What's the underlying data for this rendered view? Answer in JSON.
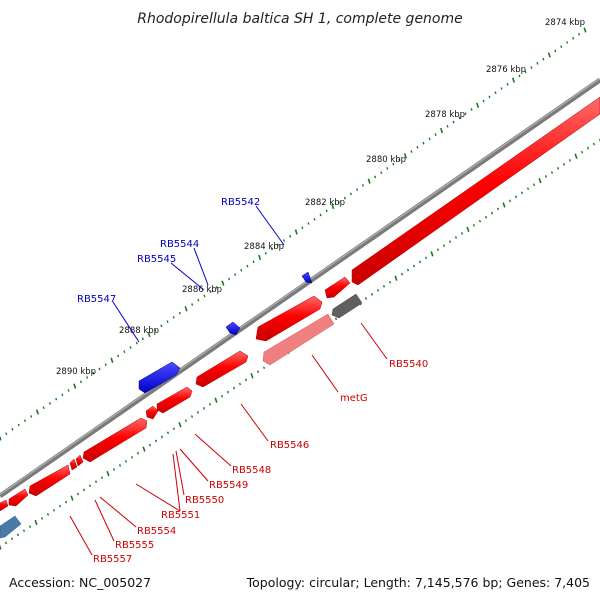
{
  "title": "Rhodopirellula baltica SH 1, complete genome",
  "accession": "Accession: NC_005027",
  "topology": "Topology: circular; Length: 7,145,576 bp; Genes: 7,405",
  "colors": {
    "forward_strand": "#ff0000",
    "reverse_strand": "#ff0000",
    "rna_gene": "#0000ff",
    "pseudo_gene": "#ff8080",
    "other_feature": "#606060",
    "ticks": "#1a7a1a",
    "backbone": "#808080",
    "label_red": "#cc0000",
    "label_blue": "#0000bb"
  },
  "kbp_labels": [
    "2874 kbp",
    "2876 kbp",
    "2878 kbp",
    "2880 kbp",
    "2882 kbp",
    "2884 kbp",
    "2886 kbp",
    "2888 kbp",
    "2890 kbp"
  ],
  "forward_labels": [
    "RB5542",
    "RB5544",
    "RB5545",
    "RB5547"
  ],
  "reverse_labels": [
    "RB5540",
    "metG",
    "RB5546",
    "RB5548",
    "RB5549",
    "RB5550",
    "RB5551",
    "RB5554",
    "RB5555",
    "RB5557"
  ]
}
